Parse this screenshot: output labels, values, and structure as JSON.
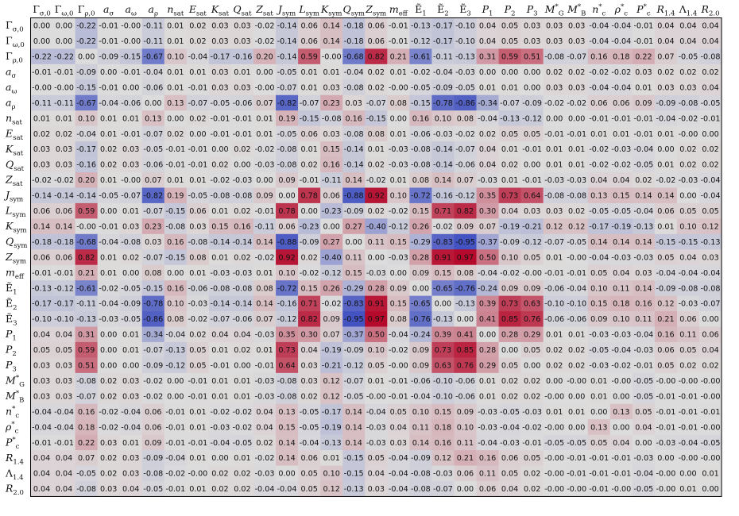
{
  "chart_data": {
    "type": "heatmap",
    "title": "",
    "x_labels": [
      "Γσ,0",
      "Γω,0",
      "Γρ,0",
      "aσ",
      "aω",
      "aρ",
      "nsat",
      "Esat",
      "Ksat",
      "Qsat",
      "Zsat",
      "Jsym",
      "Lsym",
      "Ksym",
      "Qsym",
      "Zsym",
      "meff",
      "Ẽ1",
      "Ẽ2",
      "Ẽ3",
      "P1",
      "P2",
      "P3",
      "M*G",
      "M*B",
      "n*c",
      "ρ*c",
      "P*c",
      "R1.4",
      "Λ1.4",
      "R2.0"
    ],
    "y_labels": [
      "Γσ,0",
      "Γω,0",
      "Γρ,0",
      "aσ",
      "aω",
      "aρ",
      "nsat",
      "Esat",
      "Ksat",
      "Qsat",
      "Zsat",
      "Jsym",
      "Lsym",
      "Ksym",
      "Qsym",
      "Zsym",
      "meff",
      "Ẽ1",
      "Ẽ2",
      "Ẽ3",
      "P1",
      "P2",
      "P3",
      "M*G",
      "M*B",
      "n*c",
      "ρ*c",
      "P*c",
      "R1.4",
      "Λ1.4",
      "R2.0"
    ],
    "value_range": [
      -1,
      1
    ],
    "colormap": "coolwarm",
    "cmap_low": "#3b4cc0",
    "cmap_mid": "#dddcdc",
    "cmap_high": "#b40426",
    "values": [
      [
        "0.00",
        "0.00",
        "-0.22",
        "-0.01",
        "-0.00",
        "-0.11",
        "0.01",
        "0.02",
        "0.03",
        "0.03",
        "-0.02",
        "-0.14",
        "0.06",
        "0.14",
        "-0.18",
        "0.06",
        "-0.01",
        "-0.13",
        "-0.17",
        "-0.10",
        "0.04",
        "0.05",
        "0.03",
        "0.03",
        "0.03",
        "-0.04",
        "-0.04",
        "-0.01",
        "0.04",
        "0.04",
        "0.04"
      ],
      [
        "0.00",
        "0.00",
        "-0.22",
        "-0.01",
        "-0.00",
        "-0.11",
        "0.01",
        "0.02",
        "0.03",
        "0.03",
        "-0.02",
        "-0.14",
        "0.06",
        "0.14",
        "-0.18",
        "0.06",
        "-0.01",
        "-0.12",
        "-0.17",
        "-0.10",
        "0.04",
        "0.05",
        "0.03",
        "0.03",
        "0.03",
        "-0.04",
        "-0.04",
        "-0.01",
        "0.04",
        "0.04",
        "0.04"
      ],
      [
        "-0.22",
        "-0.22",
        "0.00",
        "-0.09",
        "-0.15",
        "-0.67",
        "0.10",
        "-0.04",
        "-0.17",
        "-0.16",
        "0.20",
        "-0.14",
        "0.59",
        "-0.00",
        "-0.68",
        "0.82",
        "0.21",
        "-0.61",
        "-0.11",
        "-0.13",
        "0.31",
        "0.59",
        "0.51",
        "-0.08",
        "-0.07",
        "0.16",
        "0.18",
        "0.22",
        "0.07",
        "-0.05",
        "-0.08"
      ],
      [
        "-0.01",
        "-0.01",
        "-0.09",
        "0.00",
        "-0.01",
        "-0.04",
        "0.01",
        "0.01",
        "0.03",
        "0.01",
        "0.00",
        "-0.05",
        "0.01",
        "0.01",
        "-0.04",
        "0.02",
        "0.01",
        "-0.02",
        "-0.04",
        "-0.03",
        "0.00",
        "0.00",
        "0.00",
        "0.02",
        "0.02",
        "-0.02",
        "-0.02",
        "0.03",
        "0.02",
        "0.02",
        "0.02"
      ],
      [
        "-0.00",
        "-0.00",
        "-0.15",
        "-0.01",
        "0.00",
        "-0.06",
        "0.01",
        "-0.01",
        "0.03",
        "0.03",
        "-0.00",
        "-0.07",
        "0.01",
        "0.03",
        "-0.08",
        "0.02",
        "-0.00",
        "-0.05",
        "-0.09",
        "-0.05",
        "0.01",
        "0.01",
        "0.00",
        "0.03",
        "0.03",
        "-0.04",
        "-0.04",
        "0.01",
        "0.03",
        "0.03",
        "0.04"
      ],
      [
        "-0.11",
        "-0.11",
        "-0.67",
        "-0.04",
        "-0.06",
        "0.00",
        "0.13",
        "-0.07",
        "-0.05",
        "-0.06",
        "0.07",
        "-0.82",
        "-0.07",
        "0.23",
        "0.03",
        "-0.07",
        "0.08",
        "-0.15",
        "-0.78",
        "-0.86",
        "-0.34",
        "-0.07",
        "-0.09",
        "-0.02",
        "-0.02",
        "0.06",
        "0.06",
        "0.09",
        "-0.09",
        "-0.08",
        "-0.05"
      ],
      [
        "0.01",
        "0.01",
        "0.10",
        "0.01",
        "0.01",
        "0.13",
        "0.00",
        "0.02",
        "-0.01",
        "-0.01",
        "0.01",
        "0.19",
        "-0.15",
        "-0.08",
        "0.16",
        "-0.15",
        "0.00",
        "0.16",
        "0.10",
        "0.08",
        "-0.04",
        "-0.13",
        "-0.12",
        "0.00",
        "0.00",
        "-0.01",
        "-0.01",
        "-0.01",
        "-0.04",
        "-0.02",
        "-0.01"
      ],
      [
        "0.02",
        "0.02",
        "-0.04",
        "0.01",
        "-0.01",
        "-0.07",
        "0.02",
        "0.00",
        "-0.01",
        "-0.01",
        "0.01",
        "-0.05",
        "0.06",
        "0.03",
        "-0.08",
        "0.08",
        "0.01",
        "-0.06",
        "-0.03",
        "-0.02",
        "0.02",
        "0.05",
        "0.05",
        "-0.01",
        "-0.01",
        "0.01",
        "0.01",
        "-0.01",
        "0.01",
        "-0.00",
        "0.00"
      ],
      [
        "0.03",
        "0.03",
        "-0.17",
        "0.02",
        "0.03",
        "-0.05",
        "-0.01",
        "-0.01",
        "0.00",
        "0.02",
        "-0.02",
        "-0.08",
        "0.01",
        "0.15",
        "-0.14",
        "0.01",
        "-0.03",
        "-0.08",
        "-0.14",
        "-0.07",
        "0.04",
        "0.01",
        "-0.01",
        "0.01",
        "0.01",
        "-0.02",
        "-0.03",
        "-0.04",
        "0.00",
        "0.02",
        "0.02"
      ],
      [
        "0.03",
        "0.03",
        "-0.16",
        "0.02",
        "0.03",
        "-0.06",
        "-0.01",
        "-0.01",
        "0.02",
        "0.00",
        "-0.03",
        "-0.08",
        "0.02",
        "0.16",
        "-0.14",
        "0.02",
        "-0.03",
        "-0.08",
        "-0.14",
        "-0.06",
        "0.04",
        "0.02",
        "0.00",
        "0.01",
        "0.01",
        "-0.02",
        "-0.02",
        "-0.05",
        "0.01",
        "0.02",
        "0.02"
      ],
      [
        "-0.02",
        "-0.02",
        "0.20",
        "0.01",
        "-0.00",
        "0.07",
        "0.01",
        "0.01",
        "-0.02",
        "-0.03",
        "0.00",
        "0.09",
        "-0.01",
        "-0.11",
        "0.14",
        "-0.02",
        "0.01",
        "0.08",
        "0.14",
        "0.07",
        "-0.03",
        "0.01",
        "-0.01",
        "-0.03",
        "-0.03",
        "0.04",
        "0.04",
        "0.02",
        "-0.02",
        "-0.03",
        "-0.04"
      ],
      [
        "-0.14",
        "-0.14",
        "-0.14",
        "-0.05",
        "-0.07",
        "-0.82",
        "0.19",
        "-0.05",
        "-0.08",
        "-0.08",
        "0.09",
        "0.00",
        "0.78",
        "0.06",
        "-0.88",
        "0.92",
        "0.10",
        "-0.72",
        "-0.16",
        "-0.12",
        "0.35",
        "0.73",
        "0.64",
        "-0.08",
        "-0.08",
        "0.13",
        "0.15",
        "0.14",
        "0.14",
        "0.00",
        "-0.04"
      ],
      [
        "0.06",
        "0.06",
        "0.59",
        "0.00",
        "0.01",
        "-0.07",
        "-0.15",
        "0.06",
        "0.01",
        "0.02",
        "-0.01",
        "0.78",
        "0.00",
        "-0.23",
        "-0.09",
        "0.02",
        "-0.02",
        "0.15",
        "0.71",
        "0.82",
        "0.30",
        "0.04",
        "0.03",
        "0.03",
        "0.02",
        "-0.05",
        "-0.05",
        "-0.04",
        "0.06",
        "0.05",
        "0.05"
      ],
      [
        "0.14",
        "0.14",
        "-0.00",
        "-0.01",
        "0.03",
        "0.23",
        "-0.08",
        "0.03",
        "0.15",
        "0.16",
        "-0.11",
        "0.06",
        "-0.23",
        "0.00",
        "0.27",
        "-0.40",
        "-0.12",
        "0.26",
        "-0.02",
        "0.09",
        "0.07",
        "-0.19",
        "-0.21",
        "0.12",
        "0.12",
        "-0.17",
        "-0.19",
        "-0.13",
        "0.01",
        "0.10",
        "0.12"
      ],
      [
        "-0.18",
        "-0.18",
        "-0.68",
        "-0.04",
        "-0.08",
        "0.03",
        "0.16",
        "-0.08",
        "-0.14",
        "-0.14",
        "0.14",
        "-0.88",
        "-0.09",
        "0.27",
        "0.00",
        "0.11",
        "0.15",
        "-0.29",
        "-0.83",
        "-0.95",
        "-0.37",
        "-0.09",
        "-0.12",
        "-0.07",
        "-0.05",
        "0.14",
        "0.14",
        "0.14",
        "-0.15",
        "-0.15",
        "-0.13"
      ],
      [
        "0.06",
        "0.06",
        "0.82",
        "0.01",
        "0.02",
        "-0.07",
        "-0.15",
        "0.08",
        "0.01",
        "0.02",
        "-0.02",
        "0.92",
        "0.02",
        "-0.40",
        "0.11",
        "0.00",
        "-0.03",
        "0.28",
        "0.91",
        "0.97",
        "0.50",
        "0.10",
        "0.05",
        "0.01",
        "-0.00",
        "-0.04",
        "-0.03",
        "-0.03",
        "0.05",
        "0.04",
        "0.03"
      ],
      [
        "-0.01",
        "-0.01",
        "0.21",
        "0.01",
        "0.00",
        "0.08",
        "0.00",
        "0.01",
        "-0.03",
        "-0.03",
        "0.01",
        "0.10",
        "-0.02",
        "-0.12",
        "0.15",
        "-0.03",
        "0.00",
        "0.09",
        "0.15",
        "0.08",
        "-0.04",
        "-0.02",
        "-0.00",
        "-0.01",
        "-0.01",
        "0.05",
        "0.04",
        "0.03",
        "-0.04",
        "-0.04",
        "-0.04"
      ],
      [
        "-0.13",
        "-0.12",
        "-0.61",
        "-0.02",
        "-0.05",
        "-0.15",
        "0.16",
        "-0.06",
        "-0.08",
        "-0.08",
        "0.08",
        "-0.72",
        "0.15",
        "0.26",
        "-0.29",
        "0.28",
        "0.09",
        "0.00",
        "-0.65",
        "-0.76",
        "-0.24",
        "0.09",
        "0.09",
        "-0.06",
        "-0.04",
        "0.10",
        "0.11",
        "0.14",
        "-0.09",
        "-0.08",
        "-0.08"
      ],
      [
        "-0.17",
        "-0.17",
        "-0.11",
        "-0.04",
        "-0.09",
        "-0.78",
        "0.10",
        "-0.03",
        "-0.14",
        "-0.14",
        "0.14",
        "-0.16",
        "0.71",
        "-0.02",
        "-0.83",
        "0.91",
        "0.15",
        "-0.65",
        "0.00",
        "-0.13",
        "0.39",
        "0.73",
        "0.63",
        "-0.10",
        "-0.10",
        "0.15",
        "0.18",
        "0.16",
        "0.12",
        "-0.03",
        "-0.07"
      ],
      [
        "-0.10",
        "-0.10",
        "-0.13",
        "-0.03",
        "-0.05",
        "-0.86",
        "0.08",
        "-0.02",
        "-0.07",
        "-0.06",
        "0.07",
        "-0.12",
        "0.82",
        "0.09",
        "-0.95",
        "0.97",
        "0.08",
        "-0.76",
        "-0.13",
        "0.00",
        "0.41",
        "0.85",
        "0.76",
        "-0.06",
        "-0.06",
        "0.09",
        "0.10",
        "0.11",
        "0.21",
        "0.06",
        "0.00"
      ],
      [
        "0.04",
        "0.04",
        "0.31",
        "0.00",
        "0.01",
        "-0.34",
        "-0.04",
        "0.02",
        "0.04",
        "0.04",
        "-0.03",
        "0.35",
        "0.30",
        "0.07",
        "-0.37",
        "0.50",
        "-0.04",
        "-0.24",
        "0.39",
        "0.41",
        "0.00",
        "0.28",
        "0.29",
        "0.01",
        "0.01",
        "-0.03",
        "-0.03",
        "-0.04",
        "0.16",
        "0.11",
        "0.06"
      ],
      [
        "0.05",
        "0.05",
        "0.59",
        "0.00",
        "0.01",
        "-0.07",
        "-0.13",
        "0.05",
        "0.01",
        "0.02",
        "0.01",
        "0.73",
        "0.04",
        "-0.19",
        "-0.09",
        "0.10",
        "-0.02",
        "0.09",
        "0.73",
        "0.85",
        "0.28",
        "0.00",
        "0.05",
        "0.02",
        "0.02",
        "-0.05",
        "-0.04",
        "-0.03",
        "0.06",
        "0.05",
        "0.04"
      ],
      [
        "0.03",
        "0.03",
        "0.51",
        "0.00",
        "0.00",
        "-0.09",
        "-0.12",
        "0.05",
        "-0.01",
        "0.00",
        "-0.01",
        "0.64",
        "0.03",
        "-0.21",
        "-0.12",
        "0.05",
        "-0.00",
        "0.09",
        "0.63",
        "0.76",
        "0.29",
        "0.05",
        "0.00",
        "0.02",
        "0.02",
        "-0.03",
        "-0.02",
        "-0.01",
        "0.05",
        "0.02",
        "0.02"
      ],
      [
        "0.03",
        "0.03",
        "-0.08",
        "0.02",
        "0.03",
        "-0.02",
        "0.00",
        "-0.01",
        "0.01",
        "0.01",
        "-0.03",
        "-0.08",
        "0.03",
        "0.12",
        "-0.07",
        "0.01",
        "-0.01",
        "-0.06",
        "-0.10",
        "-0.06",
        "0.01",
        "0.02",
        "0.02",
        "0.00",
        "-0.00",
        "0.01",
        "-0.00",
        "-0.05",
        "-0.00",
        "-0.00",
        "-0.00"
      ],
      [
        "0.03",
        "0.03",
        "-0.07",
        "0.02",
        "0.03",
        "-0.02",
        "0.00",
        "-0.01",
        "0.01",
        "0.01",
        "-0.03",
        "-0.08",
        "0.02",
        "0.12",
        "-0.05",
        "-0.00",
        "-0.01",
        "-0.04",
        "-0.10",
        "-0.06",
        "0.01",
        "0.02",
        "0.02",
        "-0.00",
        "0.00",
        "0.01",
        "0.00",
        "-0.05",
        "-0.01",
        "-0.01",
        "-0.00"
      ],
      [
        "-0.04",
        "-0.04",
        "0.16",
        "-0.02",
        "-0.04",
        "0.06",
        "-0.01",
        "0.01",
        "-0.02",
        "-0.02",
        "0.04",
        "0.13",
        "-0.05",
        "-0.17",
        "0.14",
        "-0.04",
        "0.05",
        "0.10",
        "0.15",
        "0.09",
        "-0.03",
        "-0.05",
        "-0.03",
        "0.01",
        "0.01",
        "0.00",
        "0.13",
        "0.05",
        "-0.01",
        "-0.01",
        "-0.01"
      ],
      [
        "-0.04",
        "-0.04",
        "0.18",
        "-0.02",
        "-0.04",
        "0.06",
        "-0.01",
        "0.01",
        "-0.03",
        "-0.02",
        "0.04",
        "0.15",
        "-0.05",
        "-0.19",
        "0.14",
        "-0.03",
        "0.04",
        "0.11",
        "0.18",
        "0.10",
        "-0.03",
        "-0.04",
        "-0.02",
        "-0.00",
        "0.00",
        "0.13",
        "0.00",
        "0.04",
        "-0.01",
        "-0.01",
        "-0.00"
      ],
      [
        "-0.01",
        "-0.01",
        "0.22",
        "0.03",
        "0.01",
        "0.09",
        "-0.01",
        "-0.01",
        "-0.04",
        "-0.05",
        "0.02",
        "0.14",
        "-0.04",
        "-0.13",
        "0.14",
        "-0.03",
        "0.03",
        "0.14",
        "0.16",
        "0.11",
        "-0.04",
        "-0.03",
        "-0.01",
        "-0.05",
        "-0.05",
        "0.05",
        "0.04",
        "0.00",
        "-0.03",
        "-0.04",
        "-0.05"
      ],
      [
        "0.04",
        "0.04",
        "0.07",
        "0.02",
        "0.03",
        "-0.09",
        "-0.04",
        "0.01",
        "0.00",
        "0.01",
        "-0.02",
        "0.14",
        "0.06",
        "0.01",
        "-0.15",
        "0.05",
        "-0.04",
        "-0.09",
        "0.12",
        "0.21",
        "0.16",
        "0.06",
        "0.05",
        "-0.00",
        "-0.01",
        "-0.01",
        "-0.01",
        "-0.03",
        "0.00",
        "-0.00",
        "-0.00"
      ],
      [
        "0.04",
        "0.04",
        "-0.05",
        "0.02",
        "0.03",
        "-0.08",
        "-0.02",
        "-0.00",
        "0.02",
        "0.02",
        "-0.03",
        "0.00",
        "0.05",
        "0.10",
        "-0.15",
        "0.04",
        "-0.04",
        "-0.08",
        "-0.03",
        "0.06",
        "0.11",
        "0.05",
        "0.02",
        "-0.00",
        "-0.01",
        "-0.01",
        "-0.01",
        "-0.04",
        "-0.00",
        "0.00",
        "0.01"
      ],
      [
        "0.04",
        "0.04",
        "-0.08",
        "0.03",
        "0.04",
        "-0.05",
        "-0.01",
        "0.01",
        "0.02",
        "0.02",
        "-0.04",
        "-0.04",
        "0.05",
        "0.12",
        "-0.13",
        "0.03",
        "-0.04",
        "-0.08",
        "-0.07",
        "0.00",
        "0.06",
        "0.04",
        "0.02",
        "-0.00",
        "-0.00",
        "-0.01",
        "-0.00",
        "-0.05",
        "-0.00",
        "0.01",
        "0.00"
      ]
    ]
  }
}
